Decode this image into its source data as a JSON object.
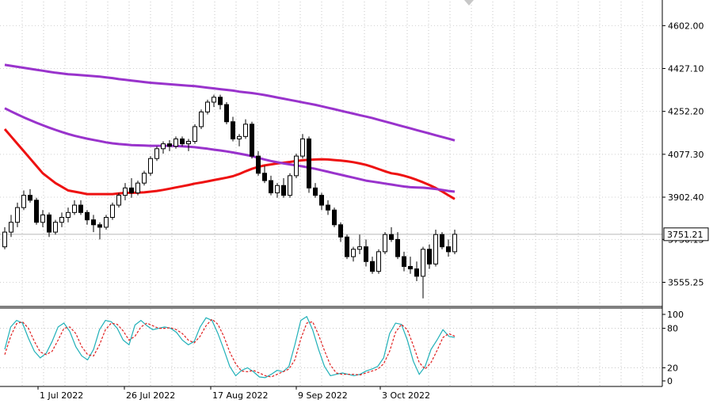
{
  "chart_data": [
    {
      "type": "candlestick",
      "panel": "price",
      "price_axis_ticks": [
        "4602.00",
        "4427.10",
        "4252.20",
        "4077.30",
        "3902.40",
        "3730.13",
        "3555.25"
      ],
      "current_price_label": "3751.21",
      "ylim": [
        3460,
        4700
      ],
      "candles": [
        [
          3700,
          3780,
          3690,
          3760
        ],
        [
          3760,
          3830,
          3740,
          3800
        ],
        [
          3800,
          3880,
          3780,
          3860
        ],
        [
          3860,
          3930,
          3850,
          3910
        ],
        [
          3910,
          3935,
          3880,
          3890
        ],
        [
          3890,
          3900,
          3790,
          3800
        ],
        [
          3800,
          3850,
          3780,
          3830
        ],
        [
          3830,
          3840,
          3740,
          3760
        ],
        [
          3760,
          3810,
          3750,
          3800
        ],
        [
          3800,
          3840,
          3780,
          3820
        ],
        [
          3820,
          3860,
          3800,
          3840
        ],
        [
          3840,
          3890,
          3830,
          3870
        ],
        [
          3870,
          3890,
          3830,
          3840
        ],
        [
          3840,
          3850,
          3790,
          3810
        ],
        [
          3810,
          3830,
          3760,
          3790
        ],
        [
          3790,
          3800,
          3730,
          3780
        ],
        [
          3780,
          3830,
          3770,
          3820
        ],
        [
          3820,
          3880,
          3810,
          3870
        ],
        [
          3870,
          3920,
          3860,
          3910
        ],
        [
          3910,
          3960,
          3890,
          3940
        ],
        [
          3940,
          3980,
          3900,
          3920
        ],
        [
          3920,
          3970,
          3910,
          3960
        ],
        [
          3960,
          4010,
          3950,
          4000
        ],
        [
          4000,
          4070,
          3990,
          4060
        ],
        [
          4060,
          4110,
          4050,
          4100
        ],
        [
          4100,
          4130,
          4080,
          4120
        ],
        [
          4120,
          4135,
          4090,
          4110
        ],
        [
          4110,
          4150,
          4100,
          4140
        ],
        [
          4140,
          4150,
          4110,
          4120
        ],
        [
          4120,
          4140,
          4090,
          4130
        ],
        [
          4130,
          4200,
          4120,
          4190
        ],
        [
          4190,
          4260,
          4180,
          4250
        ],
        [
          4250,
          4300,
          4240,
          4290
        ],
        [
          4290,
          4320,
          4270,
          4310
        ],
        [
          4310,
          4320,
          4260,
          4280
        ],
        [
          4280,
          4290,
          4200,
          4210
        ],
        [
          4210,
          4230,
          4130,
          4140
        ],
        [
          4140,
          4160,
          4110,
          4150
        ],
        [
          4150,
          4220,
          4140,
          4200
        ],
        [
          4200,
          4210,
          4060,
          4070
        ],
        [
          4070,
          4090,
          3990,
          4000
        ],
        [
          4000,
          4030,
          3960,
          3970
        ],
        [
          3970,
          3990,
          3910,
          3920
        ],
        [
          3920,
          3960,
          3900,
          3950
        ],
        [
          3950,
          3980,
          3900,
          3910
        ],
        [
          3910,
          4000,
          3900,
          3990
        ],
        [
          3990,
          4080,
          3980,
          4070
        ],
        [
          4070,
          4160,
          4060,
          4140
        ],
        [
          4140,
          4150,
          3920,
          3940
        ],
        [
          3940,
          3960,
          3900,
          3910
        ],
        [
          3910,
          3920,
          3850,
          3870
        ],
        [
          3870,
          3890,
          3830,
          3850
        ],
        [
          3850,
          3860,
          3780,
          3790
        ],
        [
          3790,
          3800,
          3720,
          3740
        ],
        [
          3740,
          3750,
          3650,
          3660
        ],
        [
          3660,
          3700,
          3640,
          3690
        ],
        [
          3690,
          3750,
          3670,
          3700
        ],
        [
          3700,
          3730,
          3620,
          3640
        ],
        [
          3640,
          3660,
          3590,
          3600
        ],
        [
          3600,
          3690,
          3590,
          3680
        ],
        [
          3680,
          3760,
          3670,
          3750
        ],
        [
          3750,
          3780,
          3720,
          3730
        ],
        [
          3730,
          3760,
          3650,
          3660
        ],
        [
          3660,
          3680,
          3600,
          3620
        ],
        [
          3620,
          3660,
          3590,
          3610
        ],
        [
          3610,
          3640,
          3560,
          3580
        ],
        [
          3580,
          3700,
          3490,
          3690
        ],
        [
          3690,
          3710,
          3610,
          3630
        ],
        [
          3630,
          3770,
          3620,
          3750
        ],
        [
          3750,
          3760,
          3690,
          3700
        ],
        [
          3700,
          3730,
          3660,
          3680
        ],
        [
          3680,
          3770,
          3670,
          3751
        ]
      ],
      "series": [
        {
          "color": "#ee1111",
          "values": [
            4180,
            4150,
            4120,
            4090,
            4060,
            4030,
            4000,
            3980,
            3960,
            3945,
            3930,
            3925,
            3920,
            3915,
            3915,
            3915,
            3915,
            3915,
            3918,
            3920,
            3920,
            3921,
            3922,
            3925,
            3928,
            3932,
            3937,
            3942,
            3947,
            3952,
            3958,
            3962,
            3967,
            3972,
            3977,
            3982,
            3988,
            3997,
            4008,
            4018,
            4026,
            4032,
            4036,
            4040,
            4043,
            4046,
            4050,
            4053,
            4055,
            4056,
            4057,
            4056,
            4054,
            4052,
            4049,
            4045,
            4040,
            4034,
            4026,
            4017,
            4008,
            4000,
            3996,
            3990,
            3982,
            3973,
            3963,
            3952,
            3940,
            3926,
            3910,
            3895
          ]
        },
        {
          "color": "#9933cc",
          "values": [
            4265,
            4252,
            4240,
            4228,
            4217,
            4206,
            4196,
            4186,
            4177,
            4168,
            4160,
            4153,
            4147,
            4141,
            4136,
            4131,
            4126,
            4122,
            4119,
            4117,
            4115,
            4114,
            4113,
            4112,
            4112,
            4112,
            4112,
            4111,
            4110,
            4108,
            4106,
            4103,
            4100,
            4096,
            4093,
            4089,
            4085,
            4080,
            4075,
            4070,
            4063,
            4056,
            4050,
            4045,
            4040,
            4036,
            4032,
            4028,
            4023,
            4018,
            4012,
            4006,
            4000,
            3994,
            3988,
            3982,
            3976,
            3970,
            3966,
            3962,
            3958,
            3954,
            3950,
            3946,
            3943,
            3942,
            3941,
            3939,
            3936,
            3932,
            3928,
            3925
          ]
        },
        {
          "color": "#9933cc",
          "values": [
            4442,
            4438,
            4434,
            4430,
            4426,
            4422,
            4418,
            4414,
            4410,
            4407,
            4404,
            4402,
            4400,
            4398,
            4396,
            4394,
            4391,
            4388,
            4384,
            4381,
            4378,
            4375,
            4372,
            4369,
            4367,
            4365,
            4363,
            4361,
            4359,
            4357,
            4355,
            4352,
            4349,
            4346,
            4343,
            4340,
            4337,
            4333,
            4330,
            4327,
            4323,
            4319,
            4314,
            4309,
            4304,
            4299,
            4294,
            4289,
            4284,
            4279,
            4273,
            4267,
            4261,
            4255,
            4249,
            4243,
            4237,
            4231,
            4225,
            4218,
            4211,
            4204,
            4197,
            4190,
            4183,
            4176,
            4169,
            4162,
            4155,
            4148,
            4141,
            4134
          ]
        }
      ]
    },
    {
      "type": "line",
      "panel": "stochastic",
      "ylim": [
        0,
        100
      ],
      "yticks": [
        "100",
        "80",
        "20",
        "0"
      ],
      "x_tick_labels": [
        "1 Jul 2022",
        "26 Jul 2022",
        "17 Aug 2022",
        "9 Sep 2022",
        "3 Oct 2022"
      ],
      "series": [
        {
          "color": "#20b0b8",
          "style": "solid",
          "values": [
            48,
            82,
            92,
            88,
            65,
            45,
            35,
            42,
            60,
            82,
            88,
            75,
            52,
            38,
            32,
            48,
            78,
            92,
            90,
            80,
            62,
            55,
            85,
            92,
            84,
            78,
            80,
            82,
            80,
            74,
            62,
            55,
            60,
            82,
            96,
            92,
            72,
            48,
            22,
            8,
            16,
            20,
            14,
            6,
            5,
            10,
            16,
            14,
            22,
            55,
            92,
            98,
            78,
            48,
            22,
            8,
            10,
            12,
            10,
            8,
            10,
            15,
            18,
            22,
            35,
            72,
            88,
            86,
            62,
            30,
            10,
            22,
            48,
            62,
            78,
            68,
            66
          ]
        },
        {
          "color": "#e02020",
          "style": "dashed",
          "values": [
            40,
            68,
            87,
            90,
            80,
            60,
            44,
            40,
            45,
            62,
            80,
            82,
            72,
            52,
            40,
            38,
            55,
            78,
            88,
            86,
            76,
            62,
            68,
            82,
            88,
            84,
            80,
            80,
            81,
            78,
            72,
            62,
            58,
            68,
            84,
            94,
            86,
            68,
            44,
            26,
            15,
            14,
            16,
            12,
            8,
            6,
            10,
            14,
            18,
            32,
            64,
            88,
            90,
            70,
            46,
            24,
            12,
            10,
            10,
            10,
            9,
            12,
            15,
            18,
            26,
            45,
            74,
            86,
            78,
            54,
            28,
            18,
            28,
            46,
            66,
            72,
            68
          ]
        }
      ]
    }
  ]
}
